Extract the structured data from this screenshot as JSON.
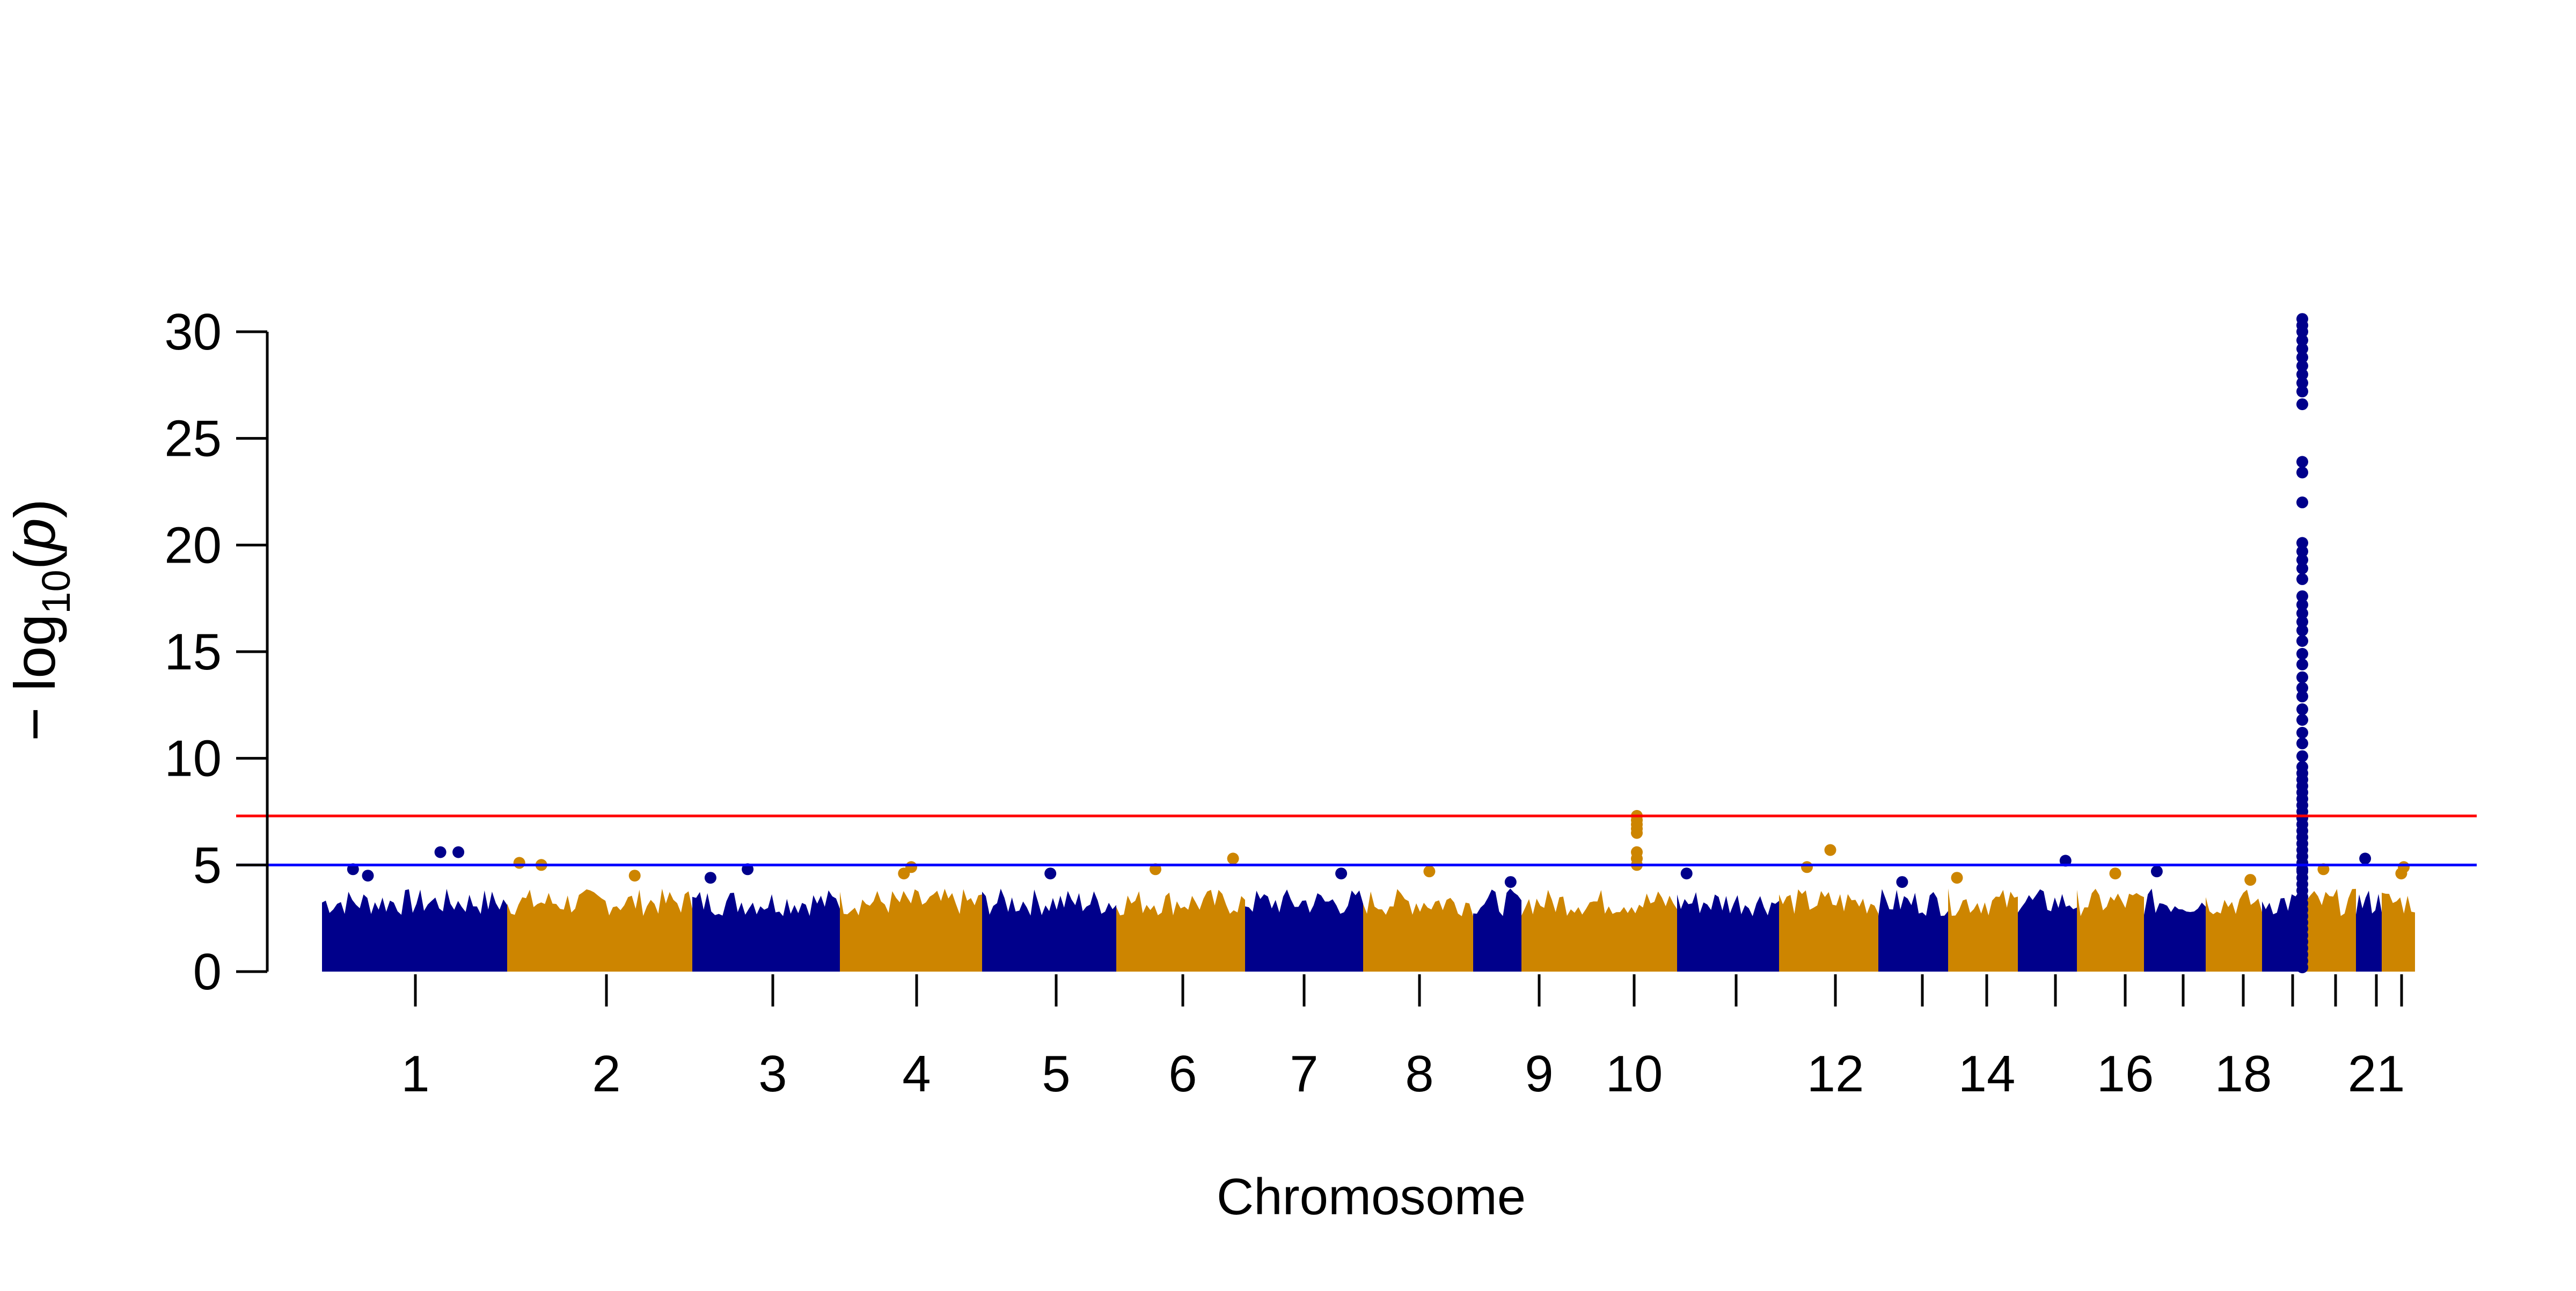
{
  "chart_data": {
    "type": "scatter",
    "xlabel": "Chromosome",
    "ylabel": "-log10(p)",
    "ylim": [
      0,
      30
    ],
    "y_ticks": [
      0,
      5,
      10,
      15,
      20,
      25,
      30
    ],
    "x_tick_labels": [
      "1",
      "2",
      "3",
      "4",
      "5",
      "6",
      "7",
      "8",
      "9",
      "10",
      "12",
      "14",
      "16",
      "18",
      "21"
    ],
    "grid": false,
    "legend": "none",
    "colors": [
      "#00008B",
      "#CD8500"
    ],
    "thresholds": [
      {
        "value": 7.3,
        "color": "#FF0000"
      },
      {
        "value": 5.0,
        "color": "#0000FF"
      }
    ],
    "chromosomes": [
      {
        "chr": "1",
        "label": "1",
        "peak": 5.6,
        "hits": [
          5.6,
          5.6,
          4.8,
          4.5
        ]
      },
      {
        "chr": "2",
        "label": "2",
        "peak": 5.1,
        "hits": [
          5.1,
          5.0,
          4.5
        ]
      },
      {
        "chr": "3",
        "label": "3",
        "peak": 4.8,
        "hits": [
          4.8,
          4.4
        ]
      },
      {
        "chr": "4",
        "label": "4",
        "peak": 4.9,
        "hits": [
          4.9,
          4.6
        ]
      },
      {
        "chr": "5",
        "label": "5",
        "peak": 4.6,
        "hits": [
          4.6
        ]
      },
      {
        "chr": "6",
        "label": "6",
        "peak": 5.3,
        "hits": [
          5.3,
          4.8
        ]
      },
      {
        "chr": "7",
        "label": "7",
        "peak": 4.6,
        "hits": [
          4.6
        ]
      },
      {
        "chr": "8",
        "label": "8",
        "peak": 4.7,
        "hits": [
          4.7
        ]
      },
      {
        "chr": "9",
        "label": "9",
        "peak": 4.2,
        "hits": [
          4.2
        ]
      },
      {
        "chr": "10",
        "label": "10",
        "peak": 7.3,
        "hits": [
          7.3,
          7.1,
          6.9,
          6.7,
          6.5,
          5.6,
          5.3,
          5.0
        ]
      },
      {
        "chr": "11",
        "label": "",
        "peak": 4.6,
        "hits": [
          4.6
        ]
      },
      {
        "chr": "12",
        "label": "12",
        "peak": 5.7,
        "hits": [
          5.7,
          4.9
        ]
      },
      {
        "chr": "13",
        "label": "",
        "peak": 4.2,
        "hits": [
          4.2
        ]
      },
      {
        "chr": "14",
        "label": "14",
        "peak": 4.4,
        "hits": [
          4.4
        ]
      },
      {
        "chr": "15",
        "label": "",
        "peak": 5.2,
        "hits": [
          5.2
        ]
      },
      {
        "chr": "16",
        "label": "16",
        "peak": 4.6,
        "hits": [
          4.6
        ]
      },
      {
        "chr": "17",
        "label": "",
        "peak": 4.7,
        "hits": [
          4.7
        ]
      },
      {
        "chr": "18",
        "label": "18",
        "peak": 4.3,
        "hits": [
          4.3
        ]
      },
      {
        "chr": "19",
        "label": "",
        "peak": 30.6,
        "hits": [
          30.6,
          30.3,
          30.0,
          29.6,
          29.2,
          28.8,
          28.4,
          28.0,
          27.6,
          27.2,
          26.6,
          23.9,
          23.4,
          22.0,
          20.1,
          19.7,
          19.3,
          18.9,
          18.4,
          17.6,
          17.2,
          16.8,
          16.4,
          16.0,
          15.5,
          14.9,
          14.4,
          13.8,
          13.3,
          12.9,
          12.3,
          11.8,
          11.2,
          10.7,
          10.1,
          9.6,
          9.3,
          9.0,
          8.7,
          8.4,
          8.1,
          7.8,
          7.5,
          7.2,
          6.9,
          6.6,
          6.3,
          6.0,
          5.7,
          5.4,
          5.1,
          4.8
        ]
      },
      {
        "chr": "20",
        "label": "",
        "peak": 4.8,
        "hits": [
          4.8
        ]
      },
      {
        "chr": "21",
        "label": "21",
        "peak": 5.3,
        "hits": [
          5.3
        ]
      },
      {
        "chr": "22",
        "label": "",
        "peak": 4.9,
        "hits": [
          4.9,
          4.6
        ]
      }
    ]
  }
}
